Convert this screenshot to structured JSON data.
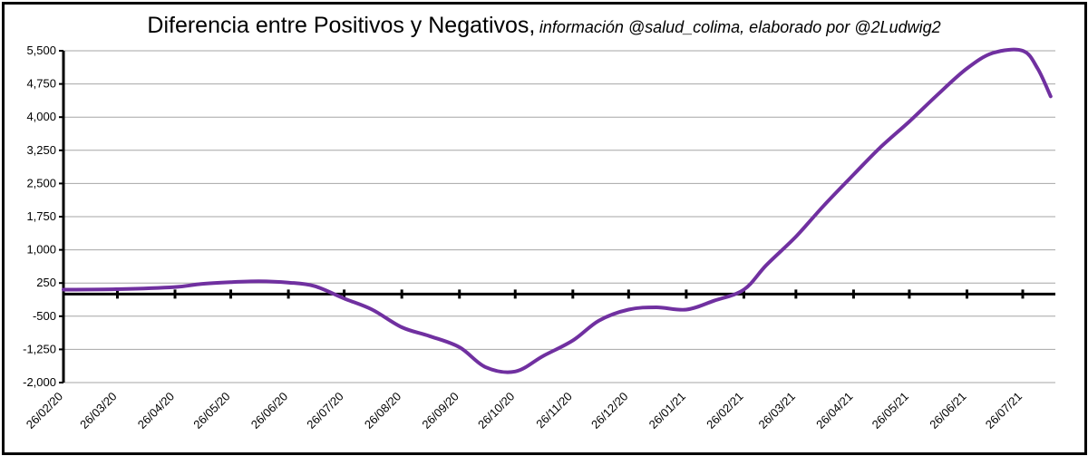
{
  "title": {
    "main": "Diferencia entre Positivos y Negativos,",
    "sub": "información @salud_colima, elaborado por @2Ludwig2"
  },
  "colors": {
    "line": "#7030a0",
    "grid": "#a6a6a6",
    "axis": "#000000"
  },
  "chart_data": {
    "type": "line",
    "title": "Diferencia entre Positivos y Negativos, información @salud_colima, elaborado por @2Ludwig2",
    "xlabel": "",
    "ylabel": "",
    "ylim": [
      -2000,
      5500
    ],
    "y_ticks": [
      -2000,
      -1250,
      -500,
      250,
      1000,
      1750,
      2500,
      3250,
      4000,
      4750,
      5500
    ],
    "y_tick_labels": [
      "-2,000",
      "-1,250",
      "-500",
      "250",
      "1,000",
      "1,750",
      "2,500",
      "3,250",
      "4,000",
      "4,750",
      "5,500"
    ],
    "x_tick_labels": [
      "26/02/20",
      "26/03/20",
      "26/04/20",
      "26/05/20",
      "26/06/20",
      "26/07/20",
      "26/08/20",
      "26/09/20",
      "26/10/20",
      "26/11/20",
      "26/12/20",
      "26/01/21",
      "26/02/21",
      "26/03/21",
      "26/04/21",
      "26/05/21",
      "26/06/21",
      "26/07/21"
    ],
    "grid": true,
    "series": [
      {
        "x": [
          "26/02/20",
          "26/03/20",
          "26/04/20",
          "10/05/20",
          "26/05/20",
          "10/06/20",
          "26/06/20",
          "10/07/20",
          "26/07/20",
          "10/08/20",
          "26/08/20",
          "10/09/20",
          "26/09/20",
          "10/10/20",
          "26/10/20",
          "10/11/20",
          "26/11/20",
          "10/12/20",
          "26/12/20",
          "10/01/21",
          "26/01/21",
          "10/02/21",
          "26/02/21",
          "10/03/21",
          "26/03/21",
          "10/04/21",
          "26/04/21",
          "10/05/21",
          "26/05/21",
          "10/06/21",
          "26/06/21",
          "10/07/21",
          "26/07/21",
          "03/08/21",
          "10/08/21"
        ],
        "y": [
          100,
          110,
          160,
          230,
          270,
          290,
          260,
          180,
          -100,
          -350,
          -750,
          -950,
          -1200,
          -1650,
          -1750,
          -1400,
          -1050,
          -600,
          -350,
          -300,
          -350,
          -150,
          100,
          650,
          1300,
          2000,
          2700,
          3300,
          3900,
          4500,
          5100,
          5450,
          5500,
          5100,
          4470
        ]
      }
    ]
  }
}
